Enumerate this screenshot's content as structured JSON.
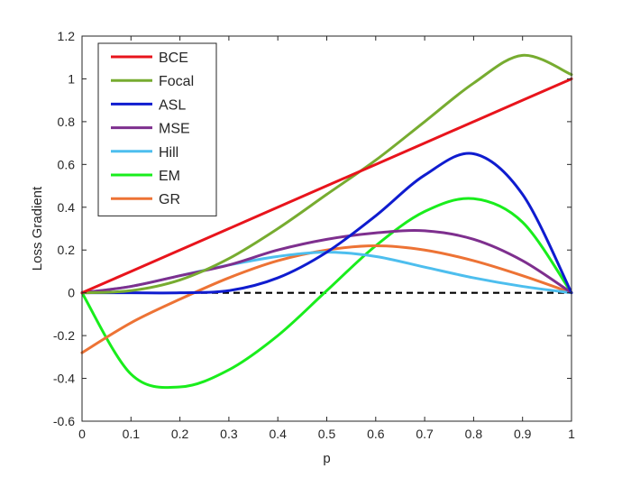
{
  "chart_data": {
    "type": "line",
    "xlabel": "p",
    "ylabel": "Loss Gradient",
    "xlim": [
      0,
      1
    ],
    "ylim": [
      -0.6,
      1.2
    ],
    "xticks": [
      "0",
      "0.1",
      "0.2",
      "0.3",
      "0.4",
      "0.5",
      "0.6",
      "0.7",
      "0.8",
      "0.9",
      "1"
    ],
    "yticks": [
      "-0.6",
      "-0.4",
      "-0.2",
      "0",
      "0.2",
      "0.4",
      "0.6",
      "0.8",
      "1",
      "1.2"
    ],
    "grid": false,
    "legend_position": "top-left",
    "reference_line": {
      "y": 0,
      "style": "dashed",
      "color": "#000000"
    },
    "x": [
      0,
      0.1,
      0.2,
      0.3,
      0.4,
      0.5,
      0.6,
      0.7,
      0.8,
      0.9,
      1
    ],
    "series": [
      {
        "name": "BCE",
        "color": "#e8141c",
        "values": [
          0,
          0.1,
          0.2,
          0.3,
          0.4,
          0.5,
          0.6,
          0.7,
          0.8,
          0.9,
          1.0
        ]
      },
      {
        "name": "Focal",
        "color": "#77ac30",
        "values": [
          0,
          0.01,
          0.06,
          0.16,
          0.3,
          0.46,
          0.62,
          0.8,
          0.98,
          1.11,
          1.02
        ]
      },
      {
        "name": "ASL",
        "color": "#0f1ccf",
        "values": [
          0,
          0,
          0,
          0.01,
          0.07,
          0.19,
          0.36,
          0.55,
          0.65,
          0.46,
          0.0
        ]
      },
      {
        "name": "MSE",
        "color": "#7e2f8e",
        "values": [
          0,
          0.03,
          0.08,
          0.13,
          0.2,
          0.25,
          0.28,
          0.29,
          0.25,
          0.15,
          0.0
        ]
      },
      {
        "name": "Hill",
        "color": "#4dbeee",
        "values": [
          0,
          0.03,
          0.08,
          0.13,
          0.17,
          0.19,
          0.17,
          0.12,
          0.07,
          0.03,
          0.0
        ]
      },
      {
        "name": "EM",
        "color": "#19ed1c",
        "values": [
          0,
          -0.38,
          -0.44,
          -0.36,
          -0.2,
          0.01,
          0.22,
          0.38,
          0.44,
          0.33,
          0.0
        ]
      },
      {
        "name": "GR",
        "color": "#ed7335",
        "values": [
          -0.28,
          -0.14,
          -0.03,
          0.07,
          0.15,
          0.2,
          0.22,
          0.2,
          0.15,
          0.08,
          0.0
        ]
      }
    ]
  }
}
